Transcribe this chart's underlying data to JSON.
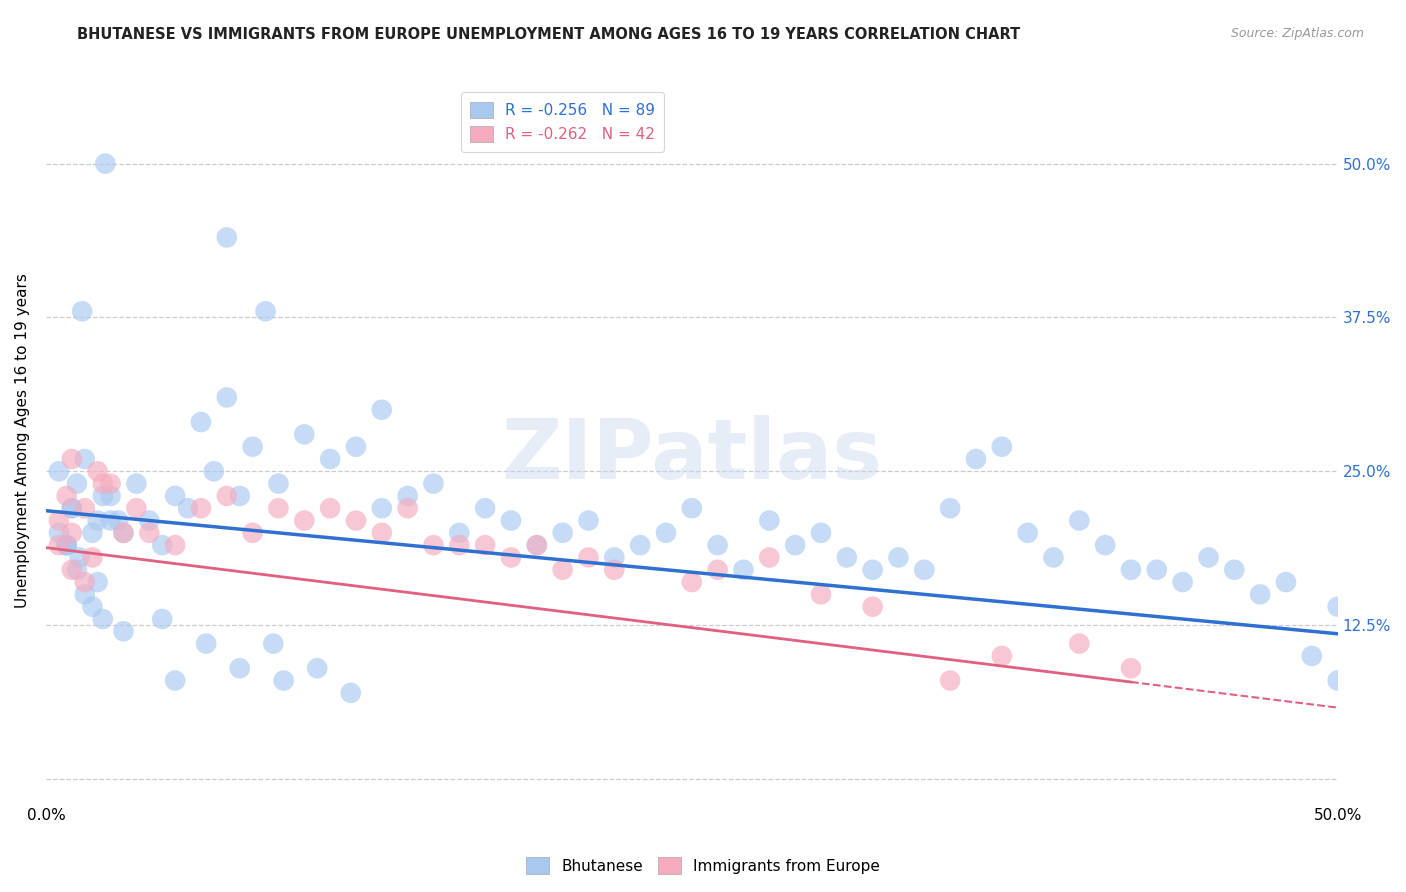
{
  "title": "BHUTANESE VS IMMIGRANTS FROM EUROPE UNEMPLOYMENT AMONG AGES 16 TO 19 YEARS CORRELATION CHART",
  "source": "Source: ZipAtlas.com",
  "ylabel": "Unemployment Among Ages 16 to 19 years",
  "ytick_values": [
    0.0,
    0.125,
    0.25,
    0.375,
    0.5
  ],
  "ytick_labels": [
    "",
    "12.5%",
    "25.0%",
    "37.5%",
    "50.0%"
  ],
  "xlim": [
    0.0,
    0.5
  ],
  "ylim": [
    -0.02,
    0.57
  ],
  "legend_label1": "R = -0.256   N = 89",
  "legend_label2": "R = -0.262   N = 42",
  "legend_label1_short": "Bhutanese",
  "legend_label2_short": "Immigrants from Europe",
  "blue_color": "#a8c8f0",
  "pink_color": "#f5aabe",
  "blue_line_color": "#3070d0",
  "pink_line_color": "#e06080",
  "blue_line_intercept": 0.218,
  "blue_line_slope": -0.2,
  "pink_line_intercept": 0.188,
  "pink_line_slope": -0.26,
  "blue_x": [
    0.008,
    0.012,
    0.015,
    0.018,
    0.022,
    0.005,
    0.01,
    0.013,
    0.02,
    0.025,
    0.008,
    0.012,
    0.018,
    0.022,
    0.028,
    0.005,
    0.01,
    0.015,
    0.02,
    0.025,
    0.03,
    0.035,
    0.04,
    0.045,
    0.05,
    0.055,
    0.06,
    0.065,
    0.07,
    0.075,
    0.08,
    0.09,
    0.1,
    0.11,
    0.12,
    0.13,
    0.14,
    0.15,
    0.16,
    0.17,
    0.18,
    0.19,
    0.2,
    0.21,
    0.22,
    0.23,
    0.24,
    0.25,
    0.26,
    0.27,
    0.28,
    0.29,
    0.3,
    0.31,
    0.32,
    0.33,
    0.34,
    0.35,
    0.36,
    0.37,
    0.38,
    0.39,
    0.4,
    0.41,
    0.42,
    0.43,
    0.44,
    0.45,
    0.46,
    0.47,
    0.48,
    0.49,
    0.5,
    0.5,
    0.13,
    0.07,
    0.085,
    0.023,
    0.014,
    0.008,
    0.03,
    0.045,
    0.05,
    0.062,
    0.075,
    0.088,
    0.092,
    0.105,
    0.118
  ],
  "blue_y": [
    0.19,
    0.17,
    0.15,
    0.14,
    0.13,
    0.2,
    0.22,
    0.18,
    0.16,
    0.21,
    0.19,
    0.24,
    0.2,
    0.23,
    0.21,
    0.25,
    0.22,
    0.26,
    0.21,
    0.23,
    0.2,
    0.24,
    0.21,
    0.19,
    0.23,
    0.22,
    0.29,
    0.25,
    0.31,
    0.23,
    0.27,
    0.24,
    0.28,
    0.26,
    0.27,
    0.22,
    0.23,
    0.24,
    0.2,
    0.22,
    0.21,
    0.19,
    0.2,
    0.21,
    0.18,
    0.19,
    0.2,
    0.22,
    0.19,
    0.17,
    0.21,
    0.19,
    0.2,
    0.18,
    0.17,
    0.18,
    0.17,
    0.22,
    0.26,
    0.27,
    0.2,
    0.18,
    0.21,
    0.19,
    0.17,
    0.17,
    0.16,
    0.18,
    0.17,
    0.15,
    0.16,
    0.1,
    0.14,
    0.08,
    0.3,
    0.44,
    0.38,
    0.5,
    0.38,
    0.19,
    0.12,
    0.13,
    0.08,
    0.11,
    0.09,
    0.11,
    0.08,
    0.09,
    0.07
  ],
  "pink_x": [
    0.005,
    0.01,
    0.015,
    0.005,
    0.01,
    0.018,
    0.008,
    0.015,
    0.02,
    0.025,
    0.03,
    0.035,
    0.04,
    0.05,
    0.06,
    0.07,
    0.08,
    0.09,
    0.1,
    0.11,
    0.12,
    0.13,
    0.14,
    0.15,
    0.16,
    0.17,
    0.18,
    0.19,
    0.2,
    0.21,
    0.22,
    0.25,
    0.26,
    0.28,
    0.3,
    0.32,
    0.35,
    0.37,
    0.4,
    0.42,
    0.01,
    0.022
  ],
  "pink_y": [
    0.19,
    0.17,
    0.16,
    0.21,
    0.2,
    0.18,
    0.23,
    0.22,
    0.25,
    0.24,
    0.2,
    0.22,
    0.2,
    0.19,
    0.22,
    0.23,
    0.2,
    0.22,
    0.21,
    0.22,
    0.21,
    0.2,
    0.22,
    0.19,
    0.19,
    0.19,
    0.18,
    0.19,
    0.17,
    0.18,
    0.17,
    0.16,
    0.17,
    0.18,
    0.15,
    0.14,
    0.08,
    0.1,
    0.11,
    0.09,
    0.26,
    0.24
  ]
}
